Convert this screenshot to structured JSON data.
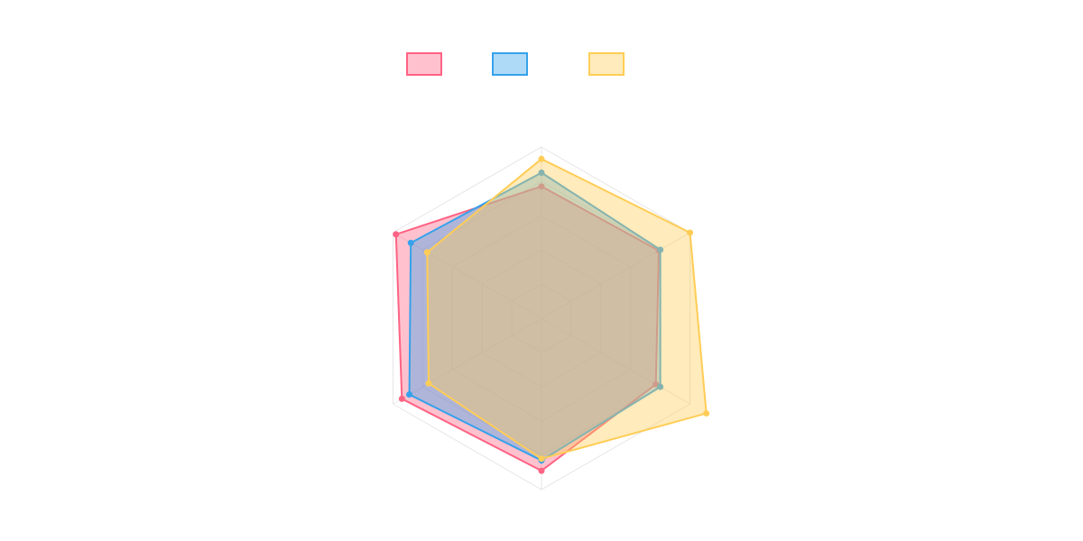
{
  "chart_data": {
    "type": "radar",
    "categories": [
      "",
      "",
      "",
      "",
      "",
      ""
    ],
    "rmax": 100,
    "rticks": [
      20,
      40,
      60,
      80,
      100
    ],
    "grid": true,
    "legend_position": "top-center",
    "series": [
      {
        "name": "",
        "color": "#ff6384",
        "fill": "rgba(255,99,132,0.4)",
        "values": [
          77,
          79,
          77,
          89,
          94,
          98
        ]
      },
      {
        "name": "",
        "color": "#36a2eb",
        "fill": "rgba(54,162,235,0.4)",
        "values": [
          85,
          80,
          80,
          83,
          89,
          88
        ]
      },
      {
        "name": "",
        "color": "#ffcd56",
        "fill": "rgba(255,205,86,0.4)",
        "values": [
          93,
          100,
          111,
          82,
          76,
          77
        ]
      }
    ]
  }
}
